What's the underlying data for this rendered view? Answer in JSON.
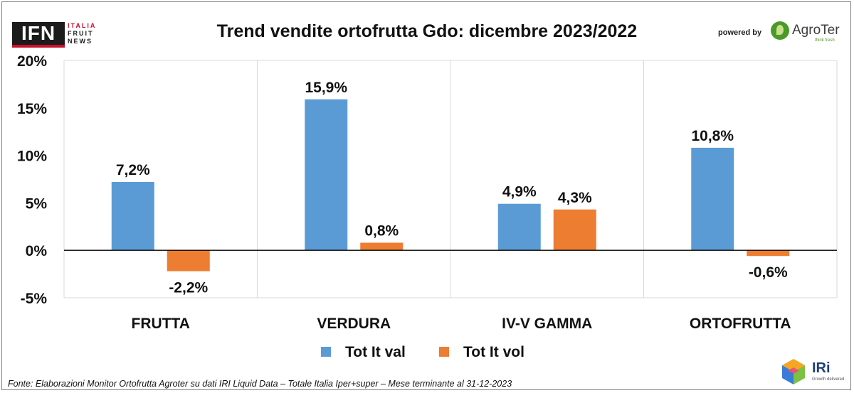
{
  "brand": {
    "ifn_mark": "IFN",
    "ifn_lines": [
      "ITALIA",
      "FRUIT",
      "NEWS"
    ],
    "powered_by": "powered by",
    "agroter_name": "AgroTer",
    "agroter_tagline": "think fresh",
    "iri_name": "IRi",
    "iri_tagline": "Growth delivered."
  },
  "source_note": "Fonte: Elaborazioni Monitor Ortofrutta Agroter su dati IRI Liquid Data – Totale Italia Iper+super – Mese terminante al 31-12-2023",
  "chart_data": {
    "type": "bar",
    "title": "Trend vendite ortofrutta Gdo: dicembre 2023/2022",
    "categories": [
      "FRUTTA",
      "VERDURA",
      "IV-V GAMMA",
      "ORTOFRUTTA"
    ],
    "series": [
      {
        "name": "Tot It val",
        "color": "#5b9bd5",
        "values": [
          7.2,
          15.9,
          4.9,
          10.8
        ],
        "labels": [
          "7,2%",
          "15,9%",
          "4,9%",
          "10,8%"
        ]
      },
      {
        "name": "Tot It  vol",
        "color": "#ed7d31",
        "values": [
          -2.2,
          0.8,
          4.3,
          -0.6
        ],
        "labels": [
          "-2,2%",
          "0,8%",
          "4,3%",
          "-0,6%"
        ]
      }
    ],
    "ylim": [
      -5,
      20
    ],
    "yticks": [
      20,
      15,
      10,
      5,
      0,
      -5
    ],
    "ytick_labels": [
      "20%",
      "15%",
      "10%",
      "5%",
      "0%",
      "-5%"
    ],
    "xlabel": "",
    "ylabel": "",
    "grid": "vertical separators",
    "legend_position": "bottom"
  }
}
